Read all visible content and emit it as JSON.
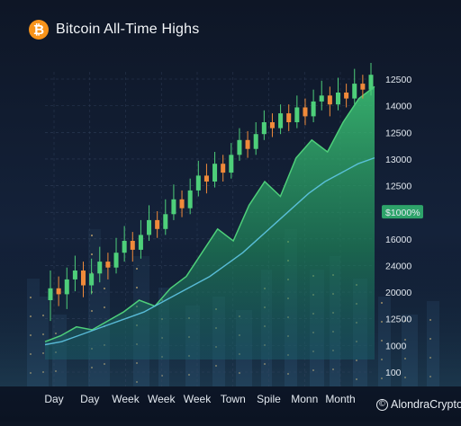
{
  "header": {
    "title": "Bitcoin All-Time Highs",
    "logo_icon": "bitcoin-icon",
    "logo_glyph": "₿"
  },
  "credit": {
    "handle": "AlondraCrypto",
    "icon": "copyright-icon",
    "glyph": "©"
  },
  "colors": {
    "background": "#0d1524",
    "bullish": "#4ecf7a",
    "bearish": "#f08a3a",
    "area_fill": "#2fbf68",
    "trend_line": "#5fc6e6",
    "highlight_badge": "#2ea36a"
  },
  "chart_data": {
    "type": "line",
    "title": "Bitcoin All-Time Highs",
    "x_tick_labels": [
      "Day",
      "Day",
      "Week",
      "Week",
      "Week",
      "Town",
      "Spile",
      "Monn",
      "Month"
    ],
    "y_tick_labels": [
      "12500",
      "14000",
      "12500",
      "13000",
      "12500",
      "$1000%",
      "16000",
      "24000",
      "20000",
      "12500",
      "1000",
      "100"
    ],
    "highlighted_tick": "$1000%",
    "grid": true,
    "legend": "none",
    "series": [
      {
        "kind": "candlestick",
        "candles": [
          [
            0.2,
            0.24,
            0.13,
            0.3
          ],
          [
            0.24,
            0.22,
            0.18,
            0.28
          ],
          [
            0.22,
            0.27,
            0.17,
            0.31
          ],
          [
            0.27,
            0.3,
            0.23,
            0.35
          ],
          [
            0.3,
            0.25,
            0.21,
            0.33
          ],
          [
            0.25,
            0.29,
            0.22,
            0.34
          ],
          [
            0.29,
            0.33,
            0.26,
            0.38
          ],
          [
            0.33,
            0.31,
            0.27,
            0.36
          ],
          [
            0.31,
            0.36,
            0.29,
            0.41
          ],
          [
            0.36,
            0.4,
            0.33,
            0.45
          ],
          [
            0.4,
            0.37,
            0.33,
            0.43
          ],
          [
            0.37,
            0.42,
            0.34,
            0.47
          ],
          [
            0.42,
            0.47,
            0.4,
            0.52
          ],
          [
            0.47,
            0.44,
            0.41,
            0.5
          ],
          [
            0.44,
            0.49,
            0.42,
            0.54
          ],
          [
            0.49,
            0.54,
            0.47,
            0.59
          ],
          [
            0.54,
            0.51,
            0.48,
            0.57
          ],
          [
            0.51,
            0.57,
            0.49,
            0.61
          ],
          [
            0.57,
            0.62,
            0.55,
            0.67
          ],
          [
            0.62,
            0.6,
            0.56,
            0.66
          ],
          [
            0.6,
            0.66,
            0.58,
            0.7
          ],
          [
            0.66,
            0.63,
            0.6,
            0.69
          ],
          [
            0.63,
            0.69,
            0.61,
            0.73
          ],
          [
            0.69,
            0.74,
            0.67,
            0.78
          ],
          [
            0.74,
            0.71,
            0.68,
            0.77
          ],
          [
            0.71,
            0.76,
            0.69,
            0.8
          ],
          [
            0.76,
            0.8,
            0.74,
            0.84
          ],
          [
            0.8,
            0.78,
            0.75,
            0.83
          ],
          [
            0.78,
            0.83,
            0.76,
            0.86
          ],
          [
            0.83,
            0.8,
            0.77,
            0.86
          ],
          [
            0.8,
            0.85,
            0.78,
            0.89
          ],
          [
            0.85,
            0.82,
            0.79,
            0.88
          ],
          [
            0.82,
            0.87,
            0.8,
            0.91
          ],
          [
            0.87,
            0.89,
            0.84,
            0.94
          ],
          [
            0.89,
            0.86,
            0.82,
            0.92
          ],
          [
            0.86,
            0.9,
            0.84,
            0.95
          ],
          [
            0.9,
            0.88,
            0.85,
            0.93
          ],
          [
            0.88,
            0.93,
            0.86,
            0.98
          ],
          [
            0.93,
            0.91,
            0.88,
            0.96
          ],
          [
            0.91,
            0.96,
            0.89,
            1.0
          ]
        ]
      },
      {
        "kind": "area",
        "values": [
          0.06,
          0.08,
          0.11,
          0.1,
          0.13,
          0.16,
          0.2,
          0.18,
          0.24,
          0.28,
          0.36,
          0.44,
          0.4,
          0.52,
          0.6,
          0.55,
          0.68,
          0.74,
          0.7,
          0.8,
          0.88,
          0.92
        ]
      },
      {
        "kind": "line",
        "values": [
          0.05,
          0.06,
          0.08,
          0.1,
          0.12,
          0.14,
          0.16,
          0.19,
          0.22,
          0.25,
          0.28,
          0.32,
          0.36,
          0.41,
          0.46,
          0.51,
          0.56,
          0.6,
          0.63,
          0.66,
          0.68
        ]
      }
    ]
  }
}
